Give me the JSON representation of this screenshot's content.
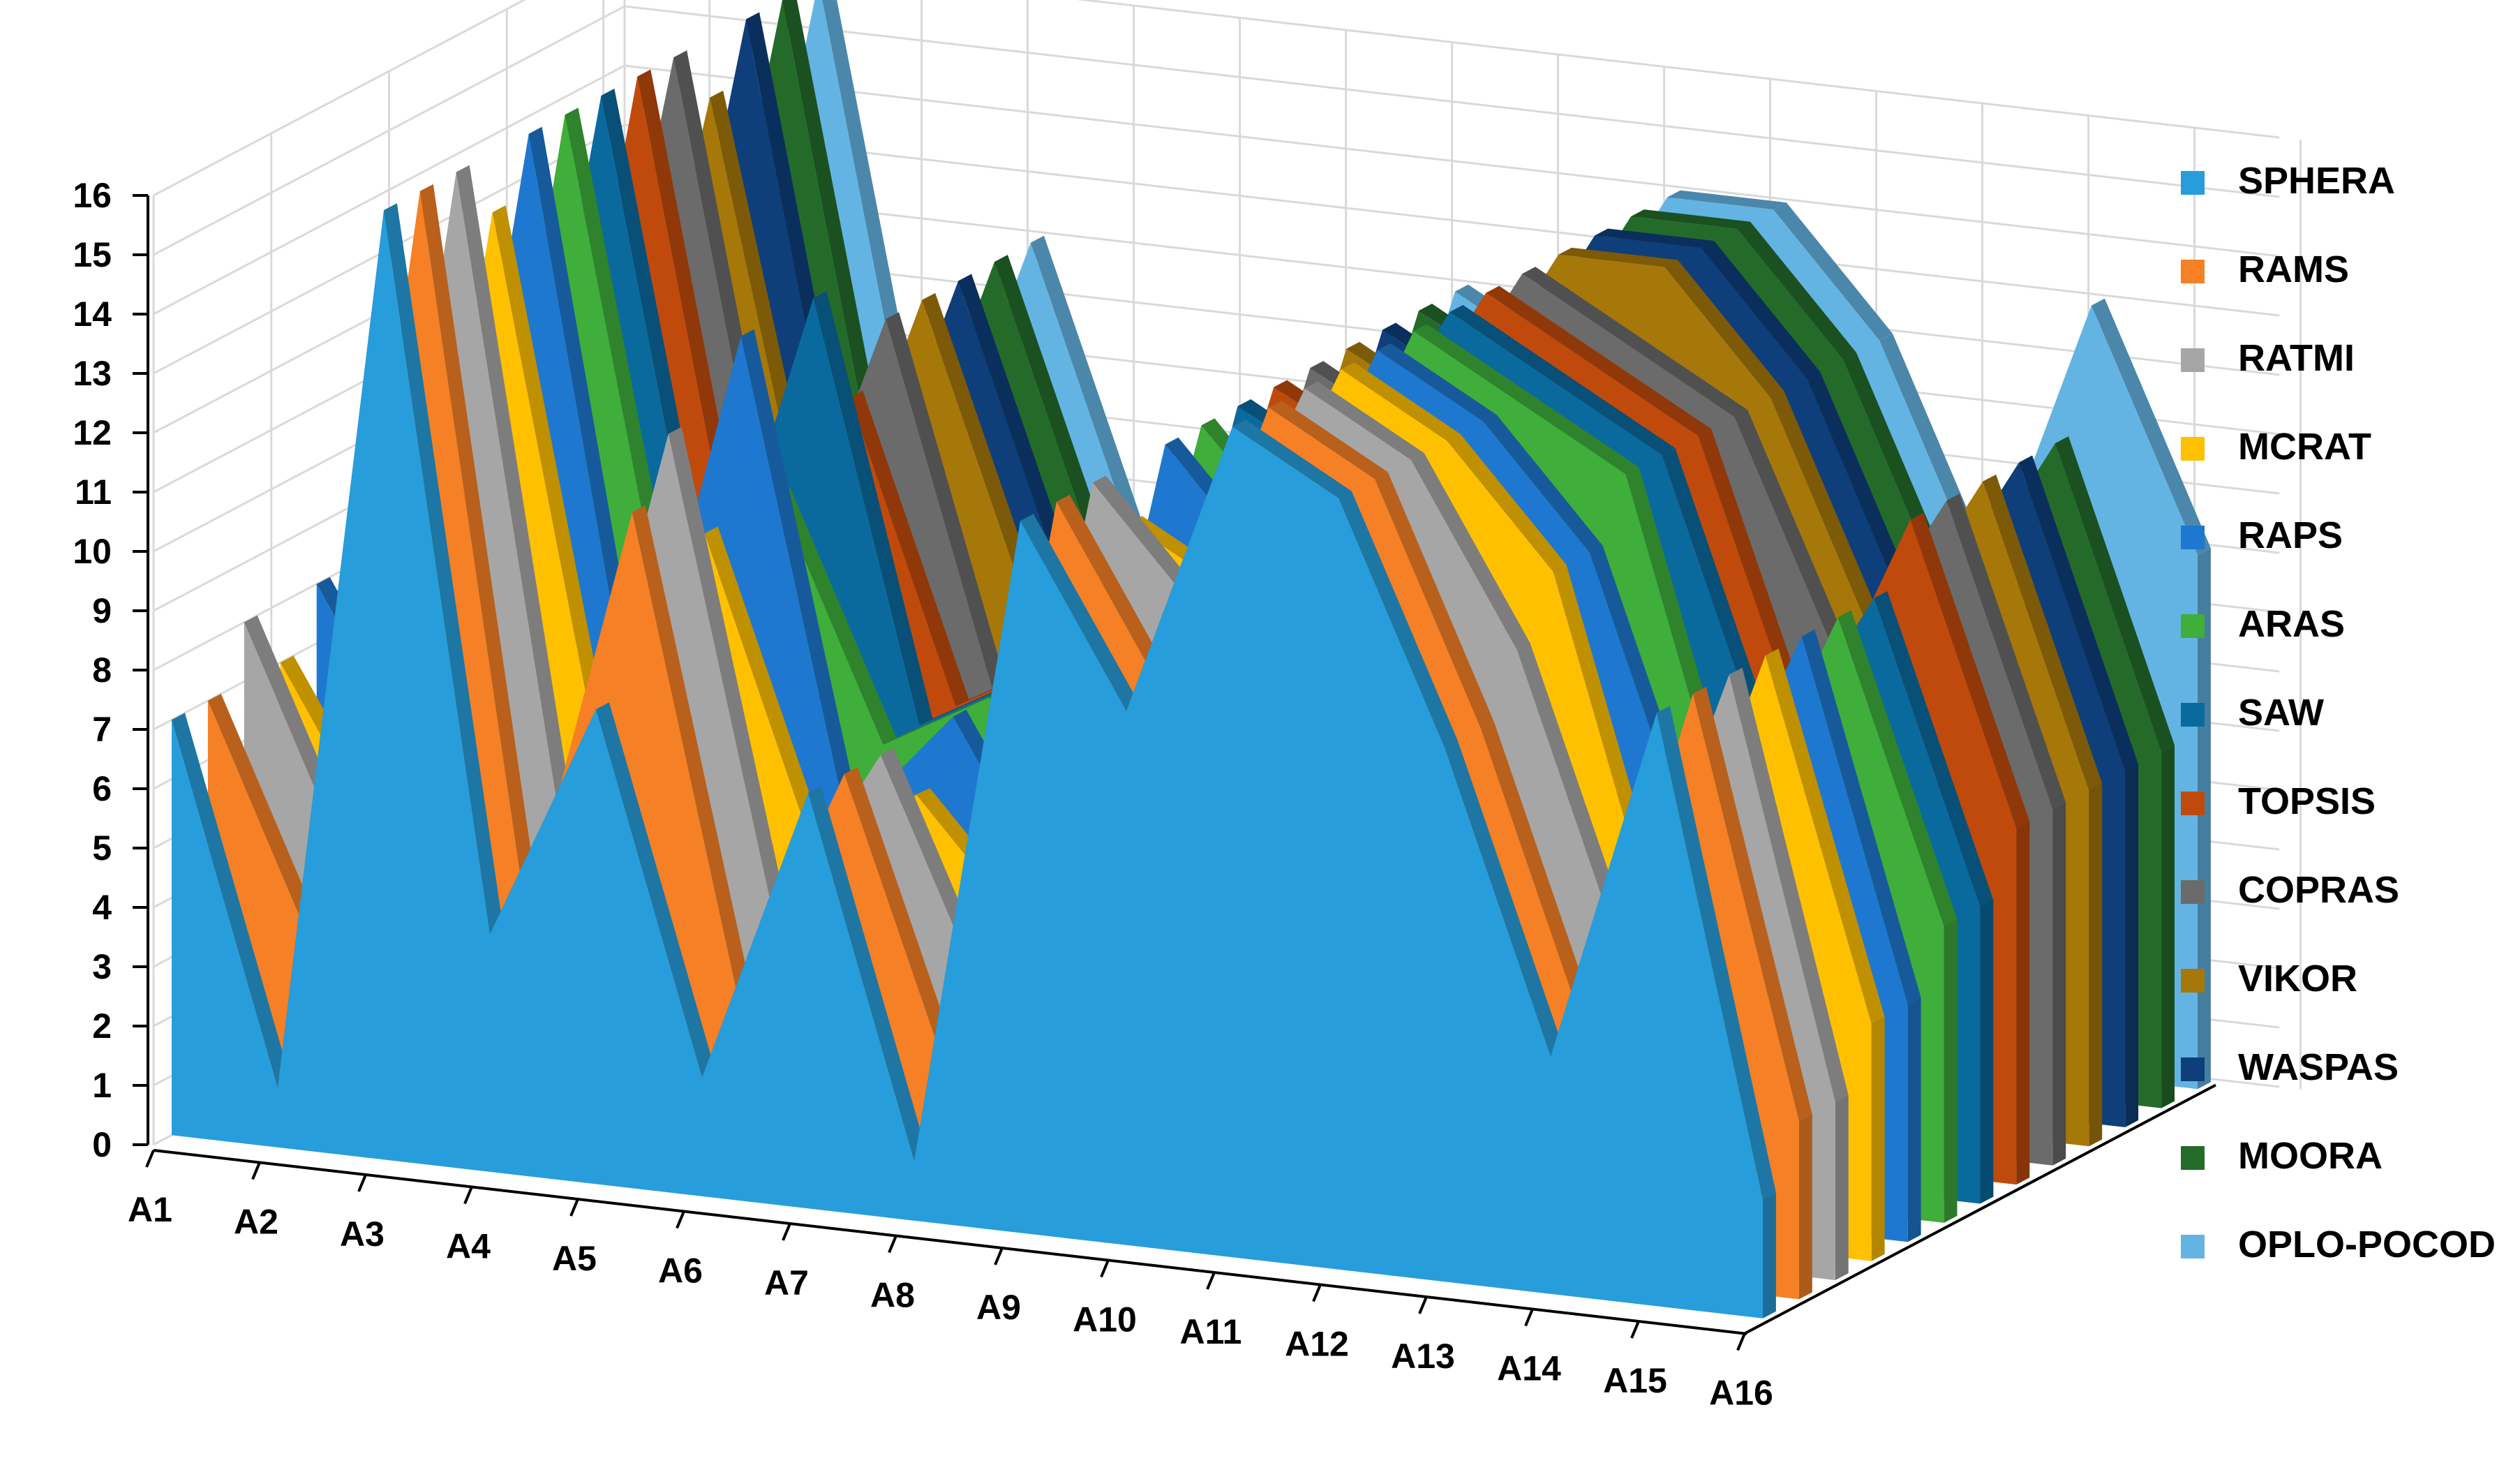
{
  "chart_data": {
    "type": "area",
    "three_d": true,
    "categories": [
      "A1",
      "A2",
      "A3",
      "A4",
      "A5",
      "A6",
      "A7",
      "A8",
      "A9",
      "A10",
      "A11",
      "A12",
      "A13",
      "A14",
      "A15",
      "A16"
    ],
    "ylim": [
      0,
      16
    ],
    "yticks": [
      0,
      1,
      2,
      3,
      4,
      5,
      6,
      7,
      8,
      9,
      10,
      11,
      12,
      13,
      14,
      15,
      16
    ],
    "grid": true,
    "legend_position": "right",
    "series": [
      {
        "name": "SPHERA",
        "color": "#279DDB",
        "values": [
          7,
          1,
          16,
          4,
          8,
          2,
          7,
          1,
          12,
          9,
          14,
          13,
          9,
          4,
          10,
          2
        ]
      },
      {
        "name": "RAMS",
        "color": "#F58025",
        "values": [
          7,
          3,
          16,
          4,
          11,
          3,
          7,
          2,
          12,
          9,
          14,
          13,
          9,
          4,
          10,
          3
        ]
      },
      {
        "name": "RATMI",
        "color": "#A6A6A6",
        "values": [
          8,
          4,
          16,
          5,
          12,
          4,
          7,
          3,
          12,
          10,
          14,
          13,
          10,
          5,
          10,
          3
        ]
      },
      {
        "name": "MCRAT",
        "color": "#FFC000",
        "values": [
          7,
          4,
          15,
          6,
          10,
          5,
          6,
          4,
          11,
          10,
          14,
          13,
          11,
          5,
          10,
          4
        ]
      },
      {
        "name": "RAPS",
        "color": "#1F78CF",
        "values": [
          8,
          5,
          16,
          6,
          13,
          5,
          7,
          4,
          12,
          10,
          14,
          13,
          11,
          6,
          10,
          4
        ]
      },
      {
        "name": "ARAS",
        "color": "#3FAE3A",
        "values": [
          8,
          5,
          16,
          7,
          10,
          6,
          7,
          5,
          12,
          10,
          14,
          13,
          12,
          6,
          10,
          5
        ]
      },
      {
        "name": "SAW",
        "color": "#0A6A9E",
        "values": [
          8,
          6,
          16,
          7,
          13,
          6,
          7,
          5,
          12,
          11,
          14,
          13,
          12,
          7,
          10,
          5
        ]
      },
      {
        "name": "TOPSIS",
        "color": "#C04A0C",
        "values": [
          8,
          6,
          16,
          7,
          11,
          6,
          7,
          6,
          12,
          11,
          14,
          13,
          12,
          7,
          11,
          6
        ]
      },
      {
        "name": "COPRAS",
        "color": "#6B6B6B",
        "values": [
          8,
          7,
          16,
          7,
          12,
          6,
          7,
          6,
          12,
          11,
          14,
          13,
          12,
          8,
          11,
          6
        ]
      },
      {
        "name": "VIKOR",
        "color": "#A6780A",
        "values": [
          8,
          7,
          15,
          7,
          12,
          7,
          7,
          6,
          12,
          11,
          14,
          14,
          12,
          8,
          11,
          6
        ]
      },
      {
        "name": "WASPAS",
        "color": "#0E3F7A",
        "values": [
          8,
          7,
          16,
          7,
          12,
          7,
          7,
          6,
          12,
          11,
          14,
          14,
          12,
          8,
          11,
          6
        ]
      },
      {
        "name": "MOORA",
        "color": "#246B2A",
        "values": [
          8,
          7,
          16,
          7,
          12,
          7,
          7,
          6,
          12,
          11,
          14,
          14,
          12,
          8,
          11,
          6
        ]
      },
      {
        "name": "OPLO-POCOD",
        "color": "#64B4E3",
        "values": [
          8,
          7,
          16,
          7,
          12,
          7,
          7,
          6,
          12,
          11,
          14,
          14,
          12,
          8,
          13,
          9
        ]
      }
    ]
  }
}
